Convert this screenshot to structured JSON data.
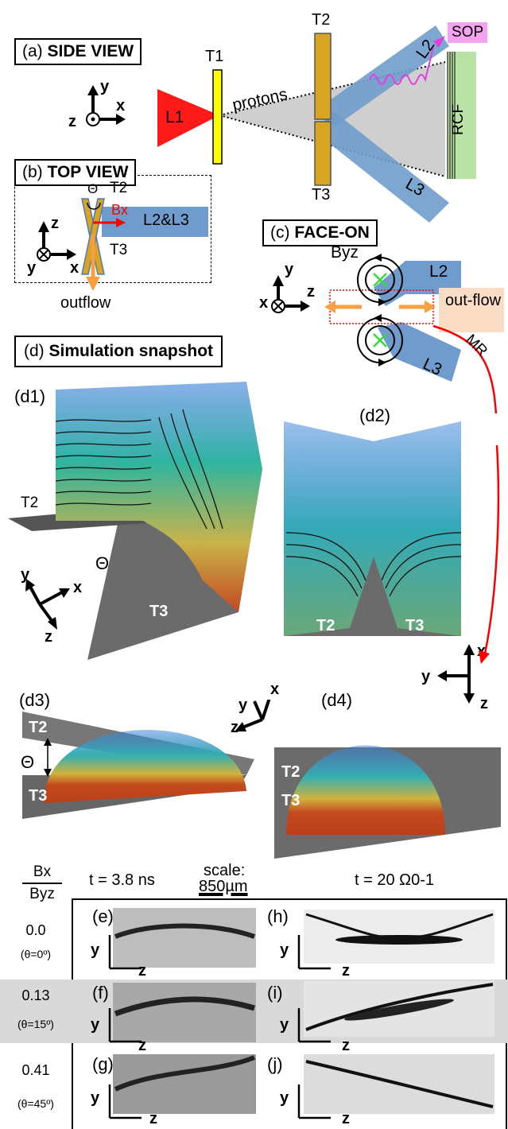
{
  "side_view": {
    "panel": "(a)",
    "title": "SIDE VIEW",
    "L1": "L1",
    "T1": "T1",
    "T2": "T2",
    "T3": "T3",
    "L2": "L2",
    "L3": "L3",
    "protons": "protons",
    "SOP": "SOP",
    "RCF": "RCF"
  },
  "top_view": {
    "panel": "(b)",
    "title": "TOP VIEW",
    "theta": "Θ",
    "T2": "T2",
    "T3": "T3",
    "Bx": "Bx",
    "beams": "L2&L3",
    "outflow": "outflow"
  },
  "face_on": {
    "panel": "(c)",
    "title": "FACE-ON",
    "Byz": "Byz",
    "L2": "L2",
    "L3": "L3",
    "outflow_right": "out-flow",
    "MR": "MR"
  },
  "simulation": {
    "panel": "(d)",
    "title": "Simulation snapshot",
    "d1": "(d1)",
    "d2": "(d2)",
    "d3": "(d3)",
    "d4": "(d4)",
    "T2": "T2",
    "T3": "T3",
    "theta": "Θ"
  },
  "axes": {
    "x": "x",
    "y": "y",
    "z": "z"
  },
  "bottom": {
    "ratio_num": "Bx",
    "ratio_den": "Byz",
    "time_left": "t = 3.8 ns",
    "scale_label": "scale:",
    "scale_value": "850µm",
    "time_right": "t = 20 Ω0-1",
    "rows": [
      {
        "ratio": "0.0",
        "theta": "(θ=0º)",
        "left": "(e)",
        "right": "(h)"
      },
      {
        "ratio": "0.13",
        "theta": "(θ=15º)",
        "left": "(f)",
        "right": "(i)"
      },
      {
        "ratio": "0.41",
        "theta": "(θ=45º)",
        "left": "(g)",
        "right": "(j)"
      }
    ]
  },
  "colors": {
    "laser": "#ff1a1a",
    "beam": "#6f9ccc",
    "target": "#d9a520",
    "foil": "#ffff00",
    "rcf": "#b9e3a6",
    "sop": "#f5a3f0",
    "outflow": "#f5a043",
    "green_arrow": "#33dd33"
  }
}
